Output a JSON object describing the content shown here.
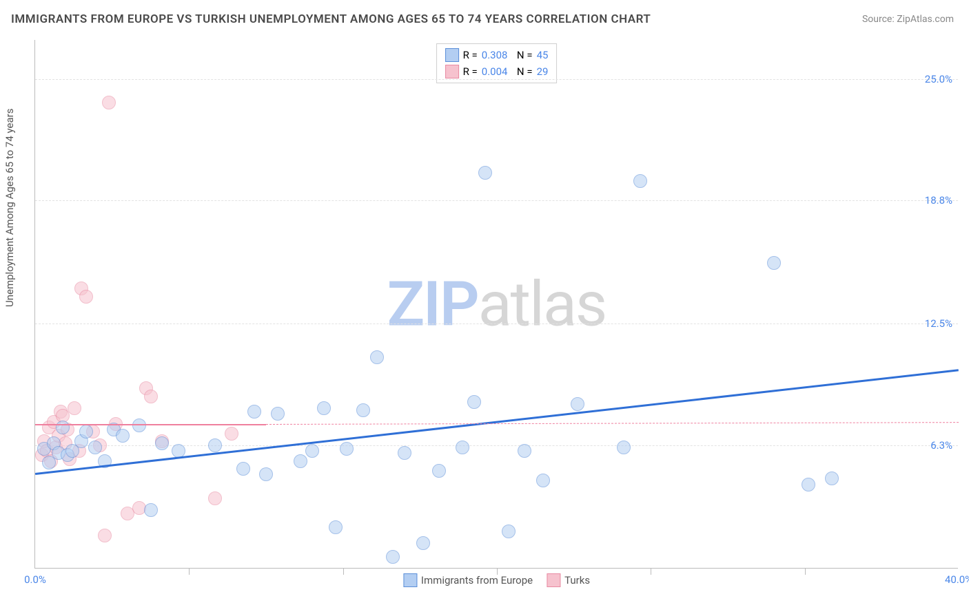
{
  "title": "IMMIGRANTS FROM EUROPE VS TURKISH UNEMPLOYMENT AMONG AGES 65 TO 74 YEARS CORRELATION CHART",
  "source": "Source: ZipAtlas.com",
  "y_axis_label": "Unemployment Among Ages 65 to 74 years",
  "watermark": {
    "part1": "ZIP",
    "part2": "atlas",
    "color1": "#b8cdf0",
    "color2": "#d6d6d6"
  },
  "chart": {
    "type": "scatter",
    "background_color": "#ffffff",
    "grid_color": "#e2e2e2",
    "axis_color": "#bbbbbb",
    "xlim": [
      0,
      40
    ],
    "ylim": [
      0,
      27
    ],
    "x_ticks": [
      {
        "pos": 0.0,
        "label": "0.0%"
      },
      {
        "pos": 40.0,
        "label": "40.0%"
      }
    ],
    "x_tick_marks": [
      6.67,
      13.33,
      20.0,
      26.67,
      33.33
    ],
    "y_ticks": [
      {
        "pos": 6.3,
        "label": "6.3%"
      },
      {
        "pos": 12.5,
        "label": "12.5%"
      },
      {
        "pos": 18.8,
        "label": "18.8%"
      },
      {
        "pos": 25.0,
        "label": "25.0%"
      }
    ],
    "series": [
      {
        "name": "Immigrants from Europe",
        "fill": "#b3cef2",
        "stroke": "#5a8ed8",
        "marker_radius": 10,
        "fill_opacity": 0.55,
        "R": "0.308",
        "N": "45",
        "trend": {
          "x1": 0,
          "y1": 4.9,
          "x2": 40,
          "y2": 10.2,
          "color": "#2f6fd6",
          "width": 3
        },
        "points": [
          [
            0.4,
            6.1
          ],
          [
            0.6,
            5.4
          ],
          [
            0.8,
            6.4
          ],
          [
            1.0,
            5.9
          ],
          [
            1.2,
            7.2
          ],
          [
            1.4,
            5.8
          ],
          [
            1.6,
            6.0
          ],
          [
            2.0,
            6.5
          ],
          [
            2.2,
            7.0
          ],
          [
            2.6,
            6.2
          ],
          [
            3.0,
            5.5
          ],
          [
            3.4,
            7.1
          ],
          [
            3.8,
            6.8
          ],
          [
            4.5,
            7.3
          ],
          [
            5.0,
            3.0
          ],
          [
            5.5,
            6.4
          ],
          [
            6.2,
            6.0
          ],
          [
            7.8,
            6.3
          ],
          [
            9.0,
            5.1
          ],
          [
            9.5,
            8.0
          ],
          [
            10.0,
            4.8
          ],
          [
            10.5,
            7.9
          ],
          [
            11.5,
            5.5
          ],
          [
            12.0,
            6.0
          ],
          [
            12.5,
            8.2
          ],
          [
            13.0,
            2.1
          ],
          [
            13.5,
            6.1
          ],
          [
            14.2,
            8.1
          ],
          [
            14.8,
            10.8
          ],
          [
            15.5,
            0.6
          ],
          [
            16.0,
            5.9
          ],
          [
            16.8,
            1.3
          ],
          [
            17.5,
            5.0
          ],
          [
            18.5,
            6.2
          ],
          [
            19.0,
            8.5
          ],
          [
            19.5,
            20.2
          ],
          [
            20.5,
            1.9
          ],
          [
            21.2,
            6.0
          ],
          [
            22.0,
            4.5
          ],
          [
            23.5,
            8.4
          ],
          [
            25.5,
            6.2
          ],
          [
            26.2,
            19.8
          ],
          [
            32.0,
            15.6
          ],
          [
            33.5,
            4.3
          ],
          [
            34.5,
            4.6
          ]
        ]
      },
      {
        "name": "Turks",
        "fill": "#f6c2ce",
        "stroke": "#e88aa2",
        "marker_radius": 10,
        "fill_opacity": 0.55,
        "R": "0.004",
        "N": "29",
        "trend": {
          "x1": 0,
          "y1": 7.4,
          "x2": 10,
          "y2": 7.4,
          "color": "#ef7f9e",
          "width": 2.5
        },
        "trend_dash": {
          "x1": 10,
          "y1": 7.4,
          "x2": 40,
          "y2": 7.5,
          "color": "#ef7f9e",
          "width": 1
        },
        "points": [
          [
            0.3,
            5.8
          ],
          [
            0.4,
            6.5
          ],
          [
            0.5,
            6.0
          ],
          [
            0.6,
            7.2
          ],
          [
            0.7,
            5.5
          ],
          [
            0.8,
            7.5
          ],
          [
            0.9,
            6.2
          ],
          [
            1.0,
            6.8
          ],
          [
            1.1,
            8.0
          ],
          [
            1.2,
            7.8
          ],
          [
            1.3,
            6.4
          ],
          [
            1.4,
            7.1
          ],
          [
            1.5,
            5.6
          ],
          [
            1.7,
            8.2
          ],
          [
            1.9,
            6.0
          ],
          [
            2.0,
            14.3
          ],
          [
            2.2,
            13.9
          ],
          [
            2.5,
            7.0
          ],
          [
            2.8,
            6.3
          ],
          [
            3.0,
            1.7
          ],
          [
            3.2,
            23.8
          ],
          [
            3.5,
            7.4
          ],
          [
            4.0,
            2.8
          ],
          [
            4.5,
            3.1
          ],
          [
            4.8,
            9.2
          ],
          [
            5.0,
            8.8
          ],
          [
            5.5,
            6.5
          ],
          [
            7.8,
            3.6
          ],
          [
            8.5,
            6.9
          ]
        ]
      }
    ]
  },
  "legend_bottom": [
    {
      "label": "Immigrants from Europe",
      "fill": "#b3cef2",
      "stroke": "#5a8ed8"
    },
    {
      "label": "Turks",
      "fill": "#f6c2ce",
      "stroke": "#e88aa2"
    }
  ]
}
